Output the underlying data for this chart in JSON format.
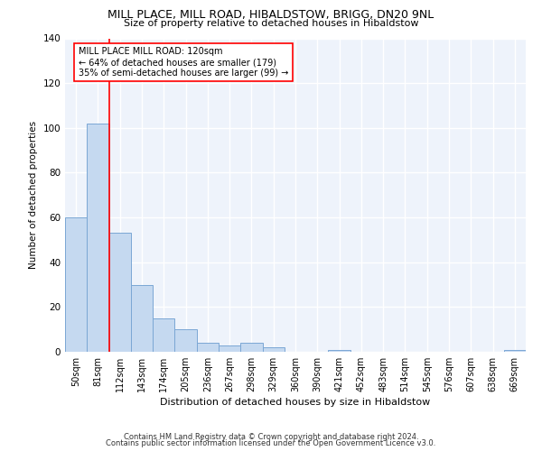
{
  "title": "MILL PLACE, MILL ROAD, HIBALDSTOW, BRIGG, DN20 9NL",
  "subtitle": "Size of property relative to detached houses in Hibaldstow",
  "xlabel": "Distribution of detached houses by size in Hibaldstow",
  "ylabel": "Number of detached properties",
  "bar_color": "#c5d9f0",
  "bar_edgecolor": "#7ba7d4",
  "background_color": "#eef3fb",
  "grid_color": "#ffffff",
  "categories": [
    "50sqm",
    "81sqm",
    "112sqm",
    "143sqm",
    "174sqm",
    "205sqm",
    "236sqm",
    "267sqm",
    "298sqm",
    "329sqm",
    "360sqm",
    "390sqm",
    "421sqm",
    "452sqm",
    "483sqm",
    "514sqm",
    "545sqm",
    "576sqm",
    "607sqm",
    "638sqm",
    "669sqm"
  ],
  "values": [
    60,
    102,
    53,
    30,
    15,
    10,
    4,
    3,
    4,
    2,
    0,
    0,
    1,
    0,
    0,
    0,
    0,
    0,
    0,
    0,
    1
  ],
  "property_label": "MILL PLACE MILL ROAD: 120sqm",
  "annotation_line1": "← 64% of detached houses are smaller (179)",
  "annotation_line2": "35% of semi-detached houses are larger (99) →",
  "vline_x_index": 2,
  "ylim": [
    0,
    140
  ],
  "yticks": [
    0,
    20,
    40,
    60,
    80,
    100,
    120,
    140
  ],
  "footer_line1": "Contains HM Land Registry data © Crown copyright and database right 2024.",
  "footer_line2": "Contains public sector information licensed under the Open Government Licence v3.0."
}
